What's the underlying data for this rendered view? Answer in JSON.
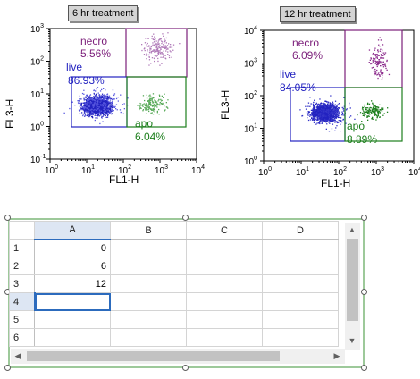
{
  "plots": [
    {
      "title": "6 hr treatment",
      "xlabel": "FL1-H",
      "ylabel": "FL3-H",
      "x_ticks": [
        "10^0",
        "10^1",
        "10^2",
        "10^3",
        "10^4"
      ],
      "y_ticks": [
        "10^-1",
        "10^0",
        "10^1",
        "10^2",
        "10^3"
      ],
      "gates": [
        {
          "name": "necro",
          "percent": "5.56%",
          "color": "#7b1e7a"
        },
        {
          "name": "live",
          "percent": "86.93%",
          "color": "#2323c0"
        },
        {
          "name": "apo",
          "percent": "6.04%",
          "color": "#1d7f1d"
        }
      ]
    },
    {
      "title": "12 hr treatment",
      "xlabel": "FL1-H",
      "ylabel": "FL3-H",
      "x_ticks": [
        "10^0",
        "10^1",
        "10^2",
        "10^3",
        "10^4"
      ],
      "y_ticks": [
        "10^0",
        "10^1",
        "10^2",
        "10^3",
        "10^4"
      ],
      "gates": [
        {
          "name": "necro",
          "percent": "6.09%",
          "color": "#7b1e7a"
        },
        {
          "name": "live",
          "percent": "84.05%",
          "color": "#2323c0"
        },
        {
          "name": "apo",
          "percent": "8.89%",
          "color": "#1d7f1d"
        }
      ]
    }
  ],
  "spreadsheet": {
    "columns": [
      "A",
      "B",
      "C",
      "D"
    ],
    "rows": [
      "1",
      "2",
      "3",
      "4",
      "5",
      "6"
    ],
    "cells_a": [
      "0",
      "6",
      "12",
      "",
      "",
      ""
    ],
    "active_cell": "A4"
  },
  "colors": {
    "necro": "#7b1e7a",
    "live": "#2323c0",
    "apo": "#1d7f1d",
    "selection": "#2c6bbd",
    "frame": "#9dc99a"
  }
}
